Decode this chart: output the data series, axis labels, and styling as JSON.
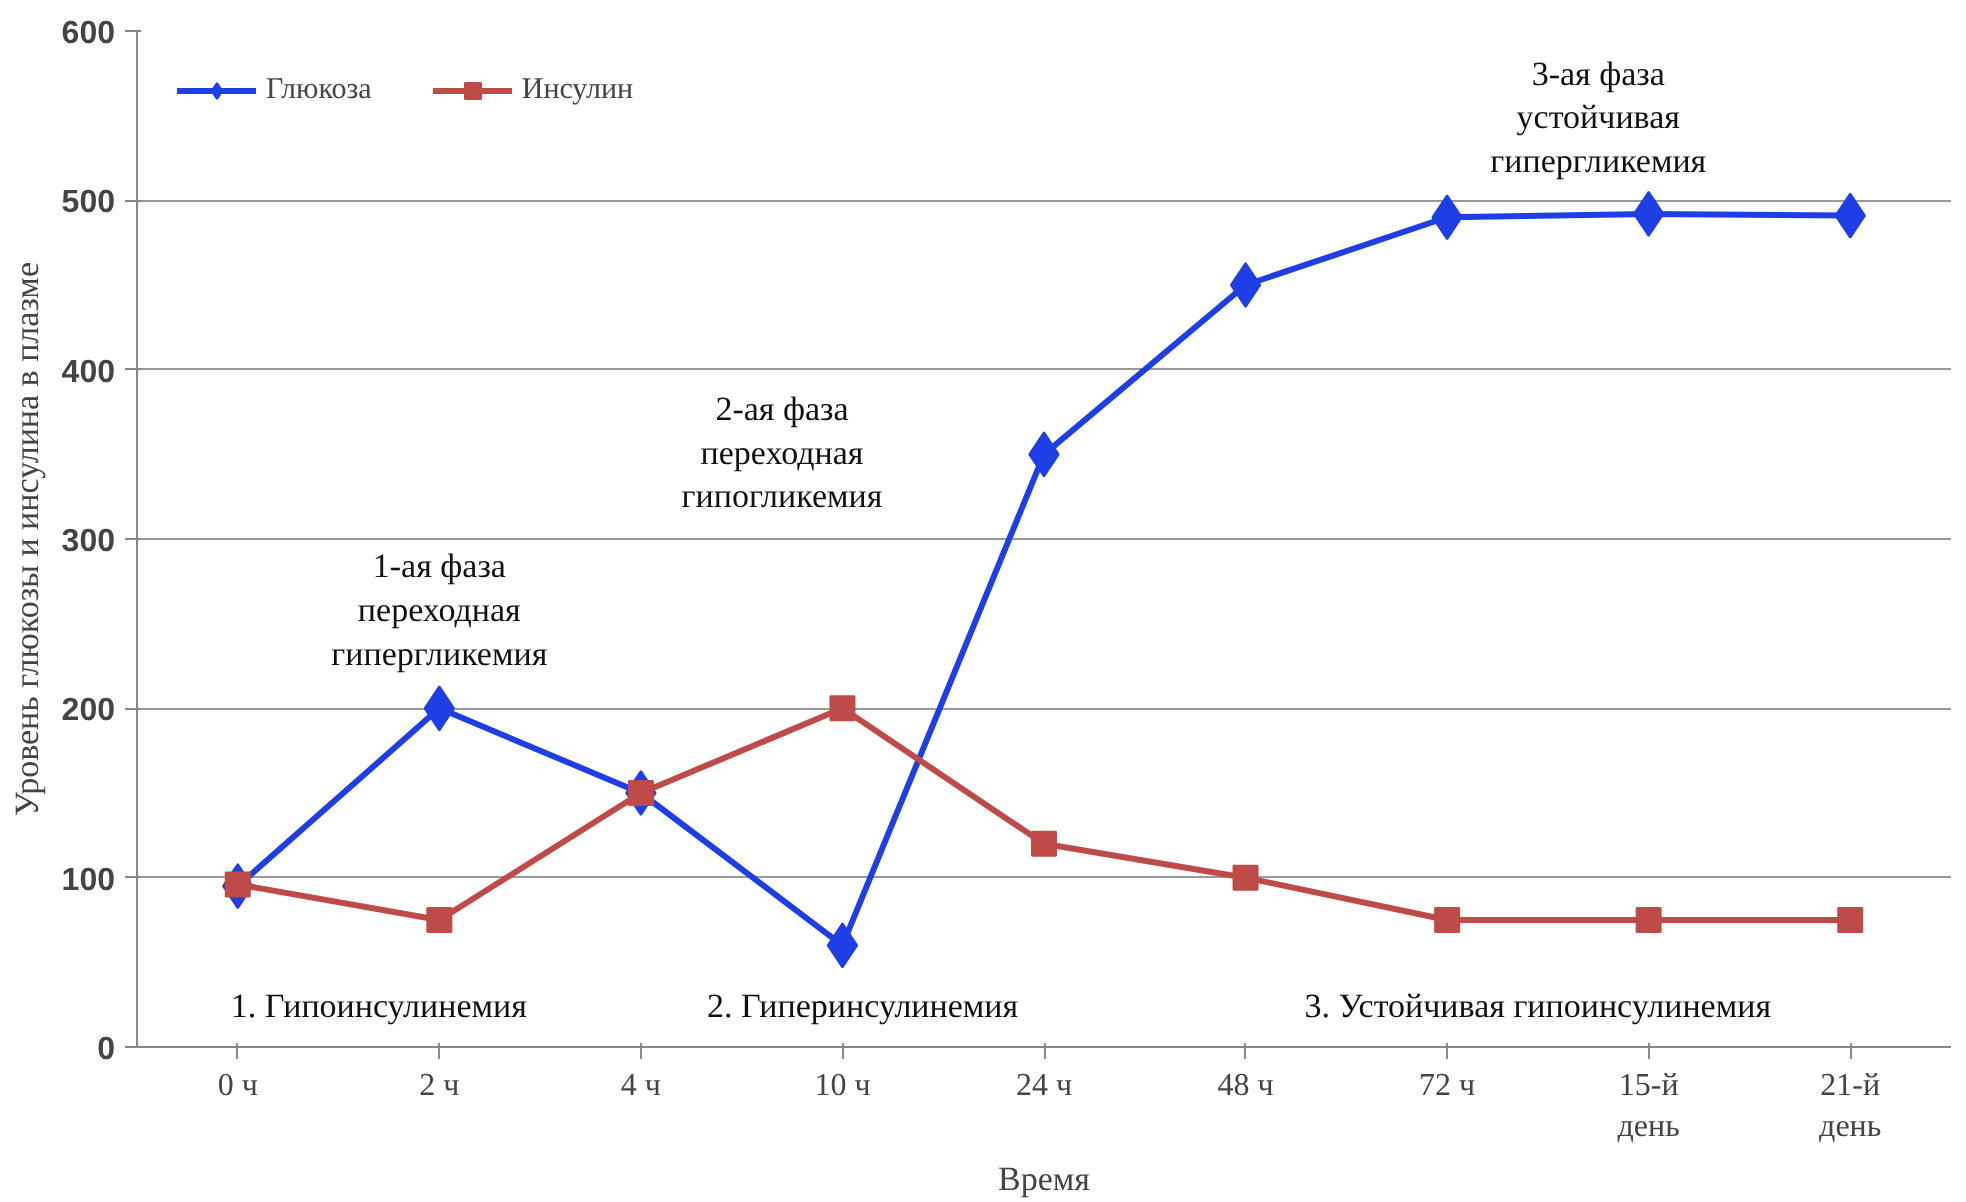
{
  "chart_data": {
    "type": "line",
    "xlabel": "Время",
    "ylabel": "Уровень глюкозы и инсулина в плазме",
    "categories": [
      "0 ч",
      "2 ч",
      "4 ч",
      "10 ч",
      "24 ч",
      "48 ч",
      "72 ч",
      "15-й\nдень",
      "21-й\nдень"
    ],
    "series": [
      {
        "name": "Глюкоза",
        "color": "#1f3fe6",
        "marker": "diamond",
        "values": [
          95,
          200,
          150,
          60,
          350,
          450,
          490,
          492,
          491
        ]
      },
      {
        "name": "Инсулин",
        "color": "#be4b48",
        "marker": "square",
        "values": [
          96,
          75,
          150,
          200,
          120,
          100,
          75,
          75,
          75
        ]
      }
    ],
    "ylim": [
      0,
      600
    ],
    "yticks": [
      0,
      100,
      200,
      300,
      400,
      500,
      600
    ],
    "grid": "y",
    "legend": "top left",
    "line_style": "solid",
    "annotations": [
      "1-ая фаза\nпереходная\nгипергликемия",
      "2-ая фаза\nпереходная\nгипогликемия",
      "3-ая фаза\nустойчивая\nгипергликемия",
      "1. Гипоинсулинемия",
      "2. Гиперинсулинемия",
      "3. Устойчивая гипоинсулинемия"
    ]
  }
}
